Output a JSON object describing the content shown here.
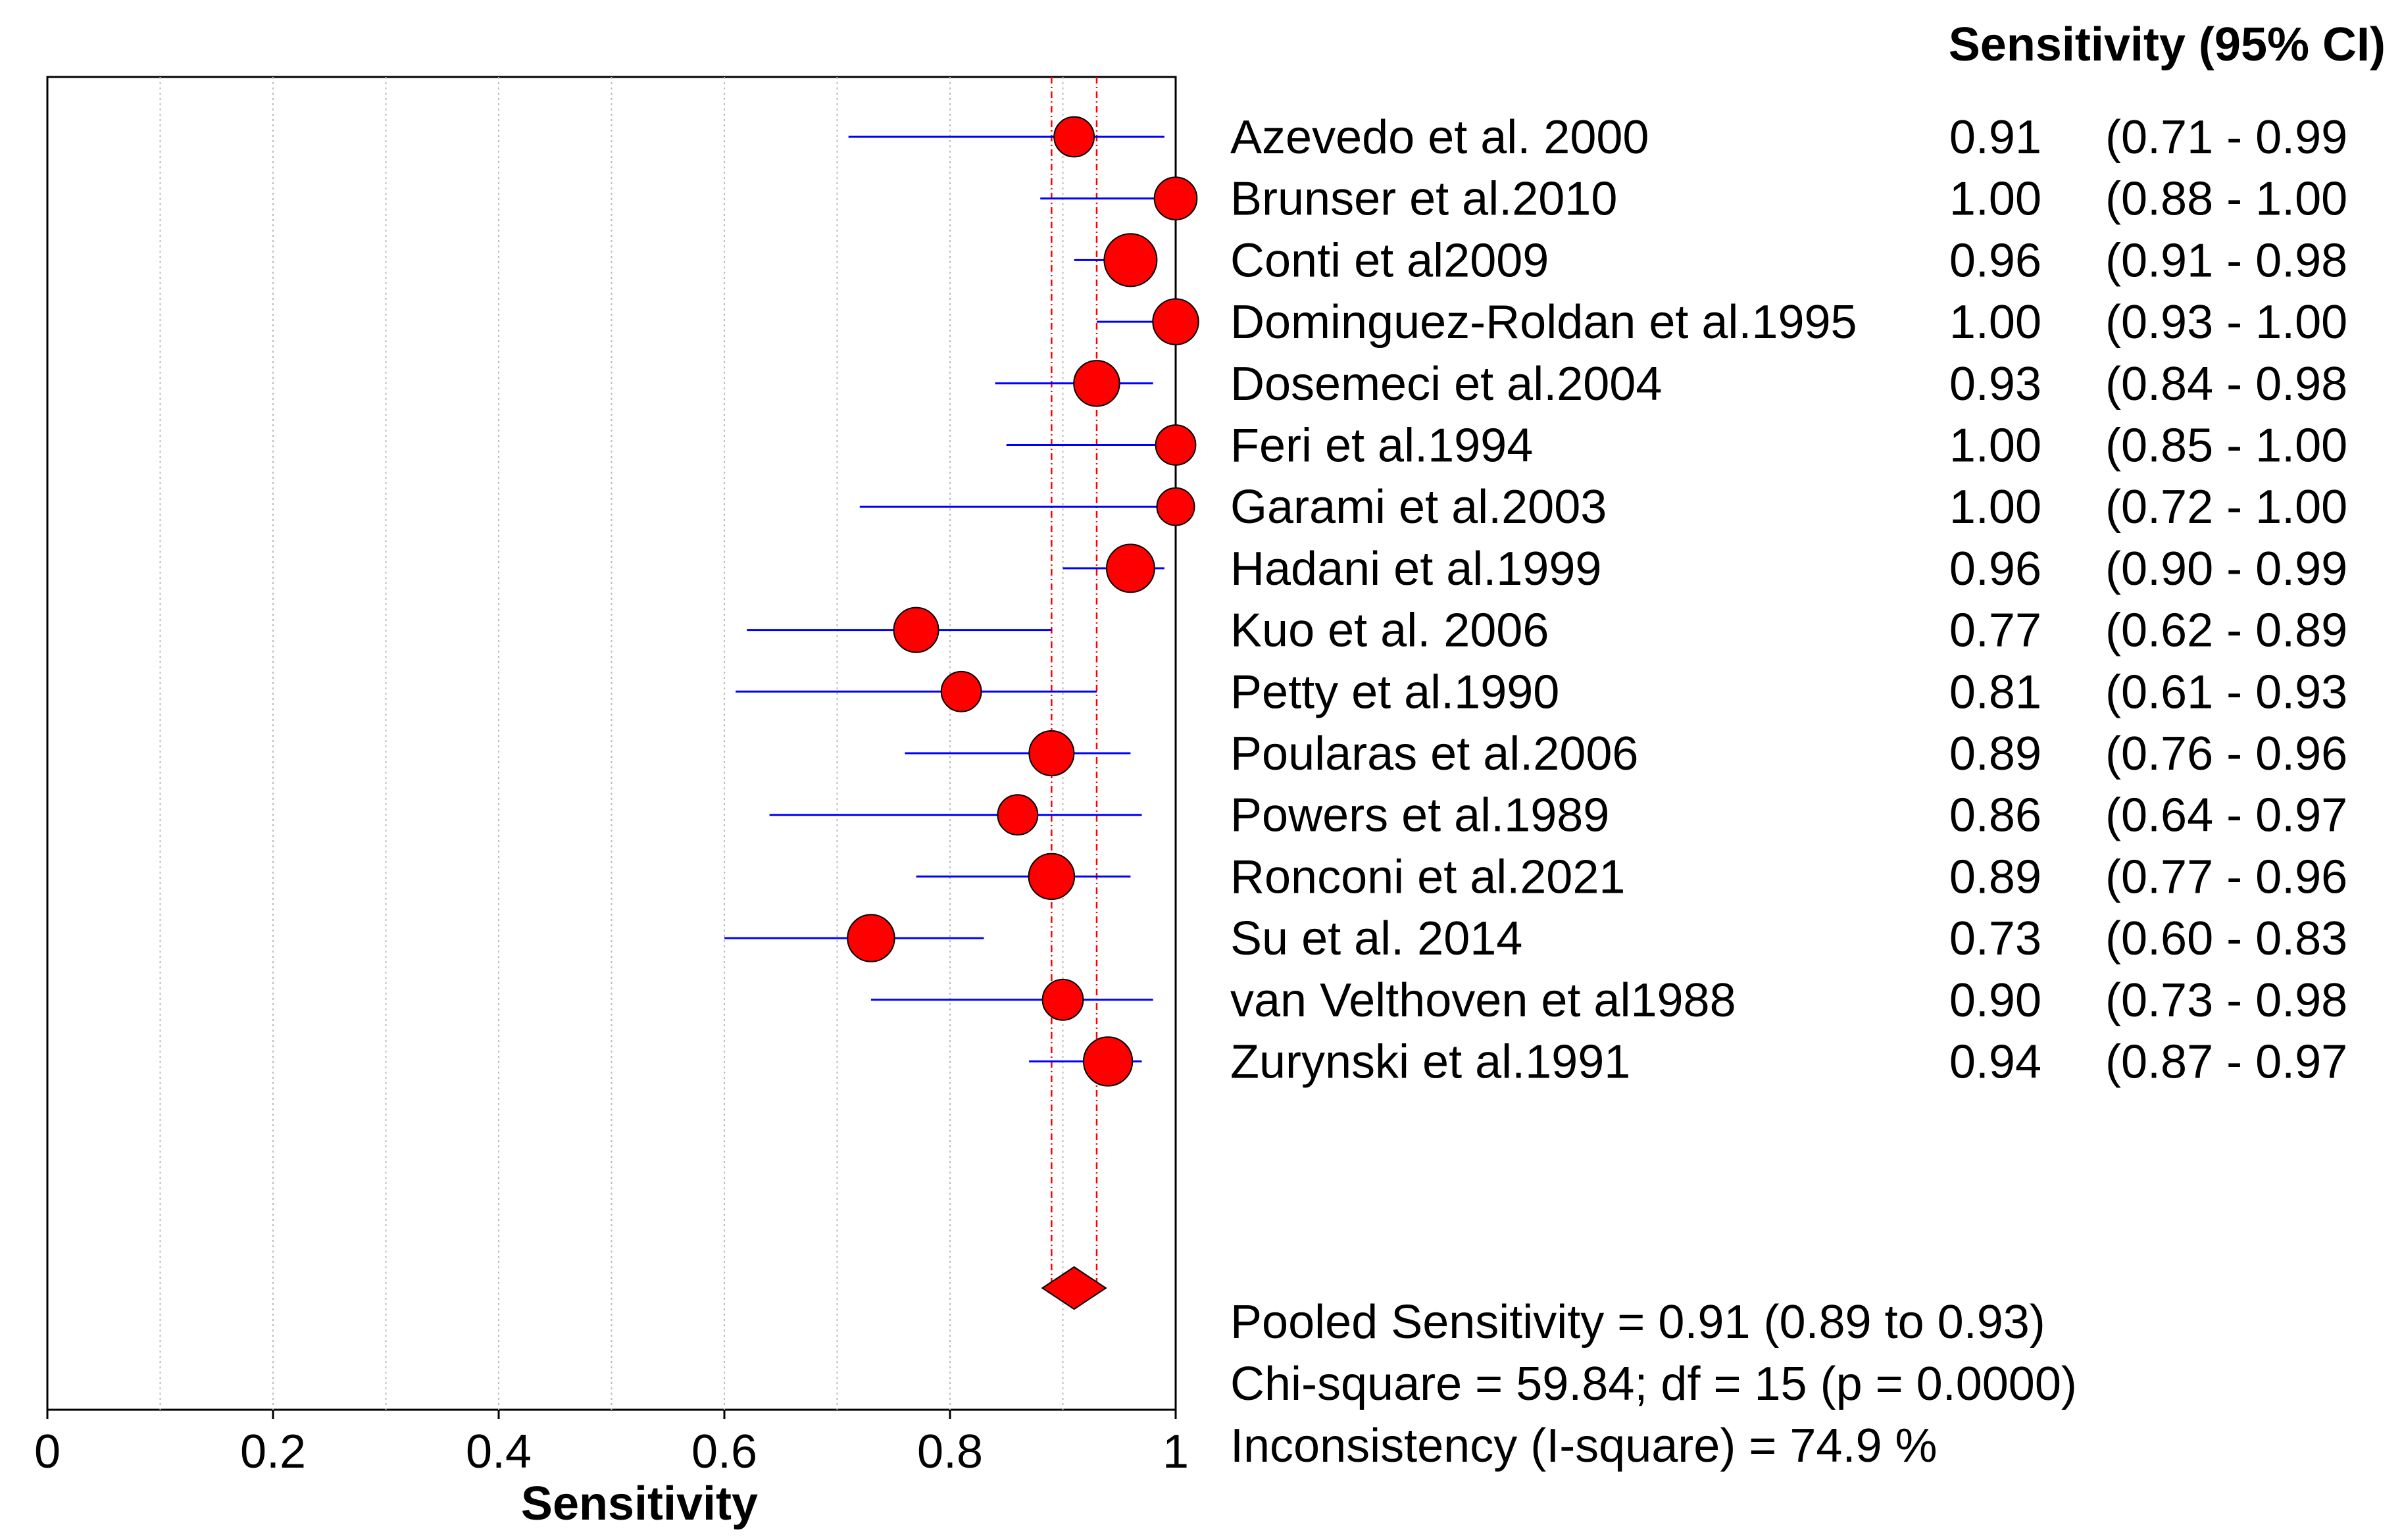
{
  "chart_data": {
    "type": "forest",
    "title": "",
    "column_header": "Sensitivity (95% CI)",
    "xlabel": "Sensitivity",
    "xlim": [
      0,
      1
    ],
    "x_ticks": [
      0,
      0.2,
      0.4,
      0.6,
      0.8,
      1
    ],
    "x_tick_labels": [
      "0",
      "0.2",
      "0.4",
      "0.6",
      "0.8",
      "1"
    ],
    "grid_step": 0.1,
    "studies": [
      {
        "name": "Azevedo et al. 2000",
        "est": 0.91,
        "lo": 0.71,
        "hi": 0.99,
        "est_label": "0.91",
        "ci_label": "(0.71 - 0.99",
        "weight": 0.6
      },
      {
        "name": "Brunser et al.2010",
        "est": 1.0,
        "lo": 0.88,
        "hi": 1.0,
        "est_label": "1.00",
        "ci_label": "(0.88 - 1.00",
        "weight": 0.68
      },
      {
        "name": "Conti et al2009",
        "est": 0.96,
        "lo": 0.91,
        "hi": 0.98,
        "est_label": "0.96",
        "ci_label": "(0.91 - 0.98",
        "weight": 1.0
      },
      {
        "name": "Dominguez-Roldan et al.1995",
        "est": 1.0,
        "lo": 0.93,
        "hi": 1.0,
        "est_label": "1.00",
        "ci_label": "(0.93 - 1.00",
        "weight": 0.78
      },
      {
        "name": "Dosemeci et al.2004",
        "est": 0.93,
        "lo": 0.84,
        "hi": 0.98,
        "est_label": "0.93",
        "ci_label": "(0.84 - 0.98",
        "weight": 0.78
      },
      {
        "name": "Feri et al.1994",
        "est": 1.0,
        "lo": 0.85,
        "hi": 1.0,
        "est_label": "1.00",
        "ci_label": "(0.85 - 1.00",
        "weight": 0.6
      },
      {
        "name": "Garami et al.2003",
        "est": 1.0,
        "lo": 0.72,
        "hi": 1.0,
        "est_label": "1.00",
        "ci_label": "(0.72 - 1.00",
        "weight": 0.52
      },
      {
        "name": "Hadani et al.1999",
        "est": 0.96,
        "lo": 0.9,
        "hi": 0.99,
        "est_label": "0.96",
        "ci_label": "(0.90 - 0.99",
        "weight": 0.85
      },
      {
        "name": "Kuo et al. 2006",
        "est": 0.77,
        "lo": 0.62,
        "hi": 0.89,
        "est_label": "0.77",
        "ci_label": "(0.62 - 0.89",
        "weight": 0.75
      },
      {
        "name": "Petty et al.1990",
        "est": 0.81,
        "lo": 0.61,
        "hi": 0.93,
        "est_label": "0.81",
        "ci_label": "(0.61 - 0.93",
        "weight": 0.6
      },
      {
        "name": "Poularas et al.2006",
        "est": 0.89,
        "lo": 0.76,
        "hi": 0.96,
        "est_label": "0.89",
        "ci_label": "(0.76 - 0.96",
        "weight": 0.75
      },
      {
        "name": "Powers et al.1989",
        "est": 0.86,
        "lo": 0.64,
        "hi": 0.97,
        "est_label": "0.86",
        "ci_label": "(0.64 - 0.97",
        "weight": 0.6
      },
      {
        "name": "Ronconi et al.2021",
        "est": 0.89,
        "lo": 0.77,
        "hi": 0.96,
        "est_label": "0.89",
        "ci_label": "(0.77 - 0.96",
        "weight": 0.78
      },
      {
        "name": "Su et al. 2014",
        "est": 0.73,
        "lo": 0.6,
        "hi": 0.83,
        "est_label": "0.73",
        "ci_label": "(0.60 - 0.83",
        "weight": 0.82
      },
      {
        "name": "van Velthoven et al1988",
        "est": 0.9,
        "lo": 0.73,
        "hi": 0.98,
        "est_label": "0.90",
        "ci_label": "(0.73 - 0.98",
        "weight": 0.62
      },
      {
        "name": "Zurynski et al.1991",
        "est": 0.94,
        "lo": 0.87,
        "hi": 0.97,
        "est_label": "0.94",
        "ci_label": "(0.87 - 0.97",
        "weight": 0.88
      }
    ],
    "pooled": {
      "est": 0.91,
      "lo": 0.89,
      "hi": 0.93
    },
    "summary": [
      "Pooled Sensitivity = 0.91 (0.89 to 0.93)",
      "Chi-square = 59.84; df =  15 (p = 0.0000)",
      "Inconsistency (I-square) = 74.9 %"
    ],
    "colors": {
      "marker": "#ff0000",
      "ci_line": "#0000ff",
      "pooled_line": "#ff0000",
      "grid": "#bbbbbb",
      "axis": "#000000"
    }
  }
}
